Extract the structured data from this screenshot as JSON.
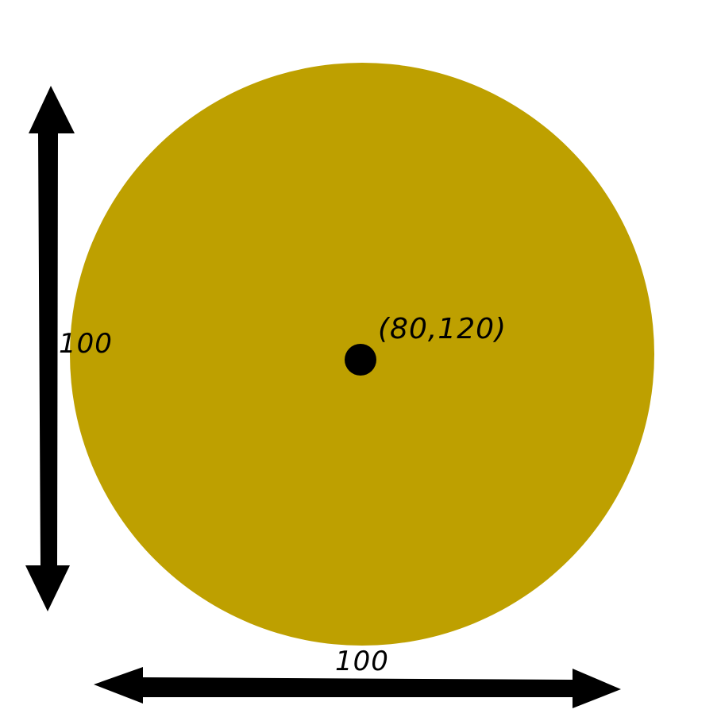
{
  "colors": {
    "circle_fill": "#BEA000",
    "ink": "#000000",
    "background": "#FFFFFF"
  },
  "circle": {
    "center_label": "(80,120)",
    "height_label": "100",
    "width_label": "100"
  },
  "icons": {
    "vertical_arrow": "double-headed-vertical-arrow",
    "horizontal_arrow": "double-headed-horizontal-arrow",
    "center_point": "filled-dot"
  }
}
